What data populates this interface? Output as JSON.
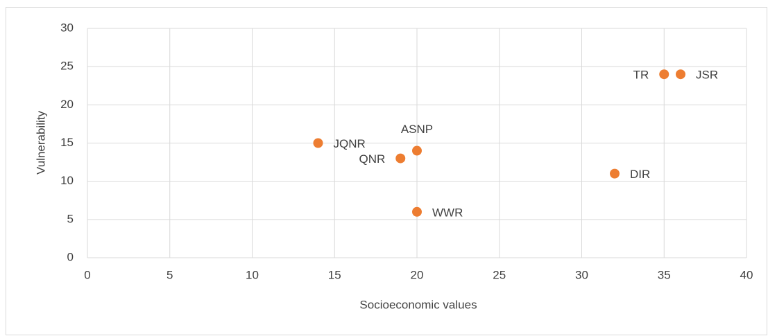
{
  "chart_data": {
    "type": "scatter",
    "x": [
      14,
      19,
      20,
      20,
      32,
      35,
      36
    ],
    "series": [
      {
        "color": "#ed7d31",
        "values": [
          15,
          13,
          14,
          6,
          11,
          24,
          24
        ]
      }
    ],
    "point_labels": [
      "JQNR",
      "QNR",
      "ASNP",
      "WWR",
      "DIR",
      "TR",
      "JSR"
    ],
    "xlabel": "Socioeconomic values",
    "ylabel": "Vulnerability",
    "xlim": [
      0,
      40
    ],
    "xticks": [
      0,
      5,
      10,
      15,
      20,
      25,
      30,
      35,
      40
    ],
    "ylim": [
      0,
      30
    ],
    "yticks": [
      0,
      5,
      10,
      15,
      20,
      25,
      30
    ],
    "grid": true
  }
}
